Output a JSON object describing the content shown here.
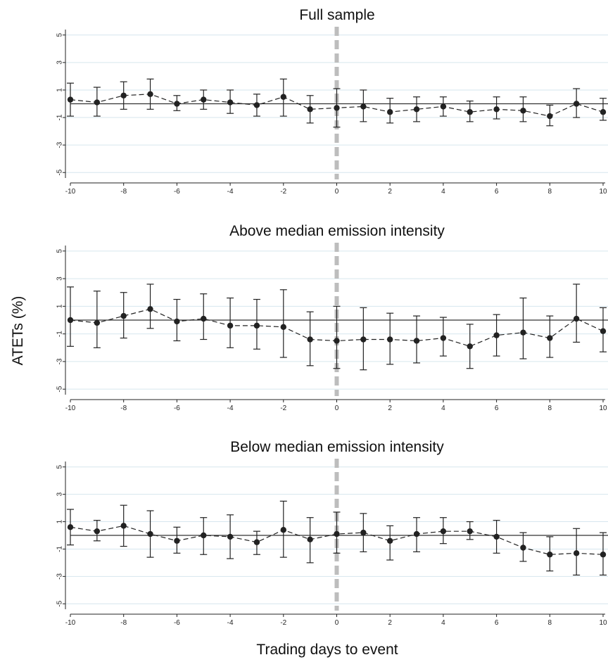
{
  "chart_data": [
    {
      "type": "line",
      "title": "Full sample",
      "x": [
        -10,
        -9,
        -8,
        -7,
        -6,
        -5,
        -4,
        -3,
        -2,
        -1,
        0,
        1,
        2,
        3,
        4,
        5,
        6,
        7,
        8,
        9,
        10
      ],
      "y": [
        0.3,
        0.1,
        0.6,
        0.7,
        0.0,
        0.3,
        0.1,
        -0.1,
        0.5,
        -0.4,
        -0.3,
        -0.2,
        -0.6,
        -0.4,
        -0.2,
        -0.6,
        -0.4,
        -0.5,
        -0.9,
        0.0,
        -0.6
      ],
      "ci_low": [
        -0.9,
        -0.9,
        -0.4,
        -0.4,
        -0.5,
        -0.4,
        -0.7,
        -0.9,
        -0.9,
        -1.4,
        -1.7,
        -1.3,
        -1.4,
        -1.3,
        -0.9,
        -1.3,
        -1.1,
        -1.3,
        -1.6,
        -1.0,
        -1.2
      ],
      "ci_high": [
        1.5,
        1.2,
        1.6,
        1.8,
        0.6,
        1.0,
        1.0,
        0.7,
        1.8,
        0.6,
        1.1,
        1.0,
        0.4,
        0.5,
        0.5,
        0.2,
        0.5,
        0.5,
        -0.1,
        1.1,
        0.4
      ],
      "xticks": [
        "-10",
        "-8",
        "-6",
        "-4",
        "-2",
        "0",
        "2",
        "4",
        "6",
        "8",
        "10"
      ],
      "yticks": [
        "5",
        "3",
        "1",
        "-1",
        "-3",
        "-5"
      ],
      "ylim": [
        -5.5,
        5.5
      ],
      "xlim": [
        -10,
        10
      ]
    },
    {
      "type": "line",
      "title": "Above median emission intensity",
      "x": [
        -10,
        -9,
        -8,
        -7,
        -6,
        -5,
        -4,
        -3,
        -2,
        -1,
        0,
        1,
        2,
        3,
        4,
        5,
        6,
        7,
        8,
        9,
        10
      ],
      "y": [
        0.0,
        -0.2,
        0.3,
        0.8,
        -0.1,
        0.1,
        -0.4,
        -0.4,
        -0.5,
        -1.4,
        -1.5,
        -1.4,
        -1.4,
        -1.5,
        -1.3,
        -1.9,
        -1.1,
        -0.9,
        -1.3,
        0.1,
        -0.8
      ],
      "ci_low": [
        -1.9,
        -2.0,
        -1.3,
        -0.6,
        -1.5,
        -1.4,
        -2.0,
        -2.1,
        -2.7,
        -3.3,
        -3.5,
        -3.6,
        -3.2,
        -3.1,
        -2.6,
        -3.5,
        -2.6,
        -2.8,
        -2.7,
        -1.6,
        -2.3
      ],
      "ci_high": [
        2.4,
        2.1,
        2.0,
        2.6,
        1.5,
        1.9,
        1.6,
        1.5,
        2.2,
        0.6,
        1.0,
        0.9,
        0.5,
        0.3,
        0.2,
        -0.3,
        0.4,
        1.6,
        0.3,
        2.6,
        0.9
      ],
      "xticks": [
        "-10",
        "-8",
        "-6",
        "-4",
        "-2",
        "0",
        "2",
        "4",
        "6",
        "8",
        "10"
      ],
      "yticks": [
        "5",
        "3",
        "1",
        "-1",
        "-3",
        "-5"
      ],
      "ylim": [
        -5.5,
        5.5
      ],
      "xlim": [
        -10,
        10
      ]
    },
    {
      "type": "line",
      "title": "Below median emission intensity",
      "x": [
        -10,
        -9,
        -8,
        -7,
        -6,
        -5,
        -4,
        -3,
        -2,
        -1,
        0,
        1,
        2,
        3,
        4,
        5,
        6,
        7,
        8,
        9,
        10
      ],
      "y": [
        0.6,
        0.3,
        0.7,
        0.1,
        -0.4,
        0.0,
        -0.1,
        -0.5,
        0.4,
        -0.3,
        0.1,
        0.2,
        -0.4,
        0.1,
        0.3,
        0.3,
        -0.1,
        -0.9,
        -1.4,
        -1.3,
        -1.4
      ],
      "ci_low": [
        -0.7,
        -0.4,
        -0.8,
        -1.6,
        -1.3,
        -1.4,
        -1.7,
        -1.4,
        -1.6,
        -2.0,
        -1.3,
        -1.2,
        -1.8,
        -1.2,
        -0.6,
        -0.3,
        -1.3,
        -1.9,
        -2.6,
        -2.9,
        -2.9
      ],
      "ci_high": [
        1.9,
        1.1,
        2.2,
        1.8,
        0.6,
        1.3,
        1.5,
        0.3,
        2.5,
        1.3,
        1.7,
        1.6,
        0.7,
        1.3,
        1.3,
        1.0,
        1.1,
        0.2,
        -0.1,
        0.5,
        0.2
      ],
      "xticks": [
        "-10",
        "-8",
        "-6",
        "-4",
        "-2",
        "0",
        "2",
        "4",
        "6",
        "8",
        "10"
      ],
      "yticks": [
        "5",
        "3",
        "1",
        "-1",
        "-3",
        "-5"
      ],
      "ylim": [
        -5.5,
        5.5
      ],
      "xlim": [
        -10,
        10
      ]
    }
  ],
  "ylabel": "ATETs (%)",
  "xlabel": "Trading days to event",
  "colors": {
    "series": "#222222",
    "event_line": "#bdbdbd",
    "grid": "#d6e6ee",
    "axis": "#222222"
  }
}
